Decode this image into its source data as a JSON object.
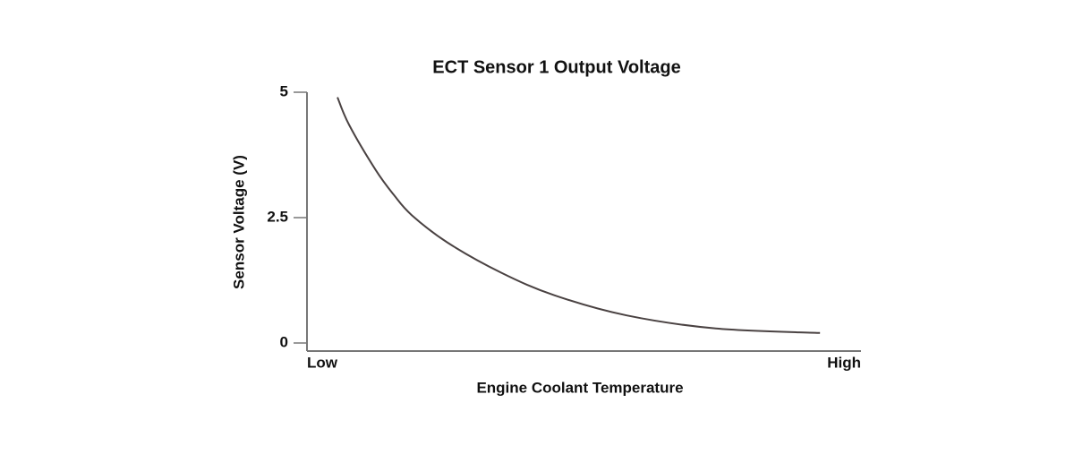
{
  "chart_data": {
    "type": "line",
    "title": "ECT Sensor 1 Output Voltage",
    "x_label": "Engine Coolant Temperature",
    "y_label": "Sensor Voltage (V)",
    "x": [
      5.5,
      7.6,
      12.4,
      15.7,
      18.9,
      25.4,
      35.1,
      44.7,
      57.7,
      73.8,
      92.6
    ],
    "series": [
      {
        "name": "Sensor Voltage",
        "color": "#4a4242",
        "values": [
          4.9,
          4.35,
          3.45,
          2.95,
          2.55,
          2.0,
          1.4,
          0.95,
          0.55,
          0.29,
          0.2
        ]
      }
    ],
    "xlim": [
      0,
      100
    ],
    "xticks": [
      {
        "value": 0,
        "label": "Low"
      },
      {
        "value": 100,
        "label": "High"
      }
    ],
    "ylim": [
      0,
      5
    ],
    "yticks": [
      0,
      2.5,
      5
    ],
    "grid": false
  }
}
